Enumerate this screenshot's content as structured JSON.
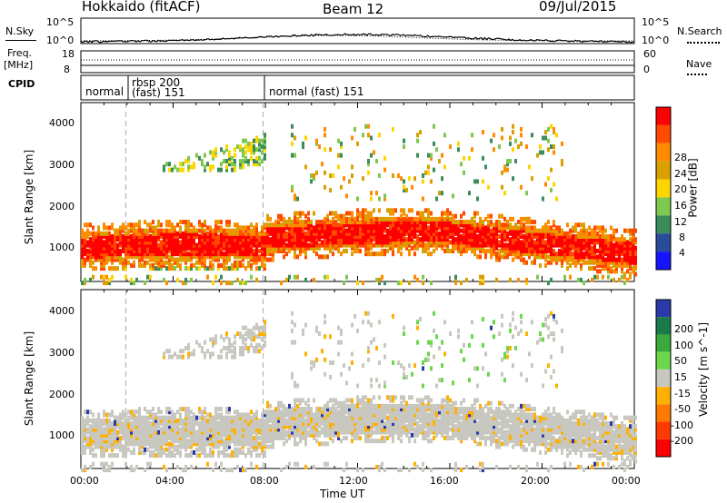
{
  "header": {
    "station": "Hokkaido (fitACF)",
    "beam": "Beam 12",
    "date": "09/Jul/2015"
  },
  "nsky_panel": {
    "left_label": "N.Sky",
    "left_ticks": [
      "10^5",
      "10^0"
    ],
    "right_ticks": [
      "10^5",
      "10^0"
    ],
    "right_label": "N.Search"
  },
  "freq_panel": {
    "left_label_1": "Freq.",
    "left_label_2": "[MHz]",
    "left_ticks": [
      "18",
      "8"
    ],
    "right_ticks": [
      "60",
      "0"
    ],
    "right_label": "Nave"
  },
  "cpid_panel": {
    "label": "CPID",
    "segments": [
      {
        "text_1": "normal",
        "text_2": ""
      },
      {
        "text_1": "rbsp 200",
        "text_2": "(fast) 151"
      },
      {
        "text_1": "normal (fast)  151",
        "text_2": ""
      }
    ]
  },
  "power_panel": {
    "ylabel": "Slant Range [km]",
    "yticks": [
      "4000",
      "3000",
      "2000",
      "1000"
    ],
    "colorbar_label": "Power [dB]",
    "colorbar_ticks": [
      "28",
      "24",
      "20",
      "16",
      "12",
      "8",
      "4"
    ],
    "colors": [
      "#ff0000",
      "#ff4a00",
      "#ff8c00",
      "#d8a000",
      "#ffd500",
      "#7ec850",
      "#3a8c5a",
      "#2a4a9a",
      "#1414ff"
    ]
  },
  "velocity_panel": {
    "ylabel": "Slant Range [km]",
    "yticks": [
      "4000",
      "3000",
      "2000",
      "1000"
    ],
    "colorbar_label": "Velocity [m s^-1]",
    "colorbar_ticks": [
      "200",
      "100",
      "50",
      "15",
      "-15",
      "-50",
      "-100",
      "-200"
    ],
    "colors": [
      "#2a3aaa",
      "#1a7a4a",
      "#3aa83a",
      "#6ad84a",
      "#c8c8c0",
      "#ffb000",
      "#ff7a00",
      "#ff3a00",
      "#ff0000"
    ]
  },
  "xaxis": {
    "label": "Time UT",
    "ticks": [
      "00:00",
      "04:00",
      "08:00",
      "12:00",
      "16:00",
      "20:00",
      "00:00"
    ]
  },
  "chart_data": {
    "type": "heatmap",
    "x_range_hours": [
      0,
      24
    ],
    "y_range_km": [
      180,
      4500
    ],
    "mode_changes_hours": [
      1.95,
      7.9
    ],
    "power_bands": [
      {
        "t_start": 0,
        "t_end": 24,
        "range_center_km": [
          1050,
          1300,
          1450,
          1200,
          900
        ],
        "dominant_db": 28
      },
      {
        "t_start": 0,
        "t_end": 7.5,
        "range_center_km": [
          800,
          750,
          700
        ],
        "dominant_db": 20
      },
      {
        "t_start": 4,
        "t_end": 8,
        "range_center_km": [
          3100,
          3500,
          3800
        ],
        "dominant_db": 12
      },
      {
        "t_start": 12,
        "t_end": 20,
        "range_center_km": [
          3400,
          3000,
          2500
        ],
        "dominant_db": 20
      }
    ],
    "velocity_summary": {
      "main_band_velocity": [
        -15,
        15
      ],
      "far_range_late_velocity": [
        50,
        100
      ]
    }
  }
}
